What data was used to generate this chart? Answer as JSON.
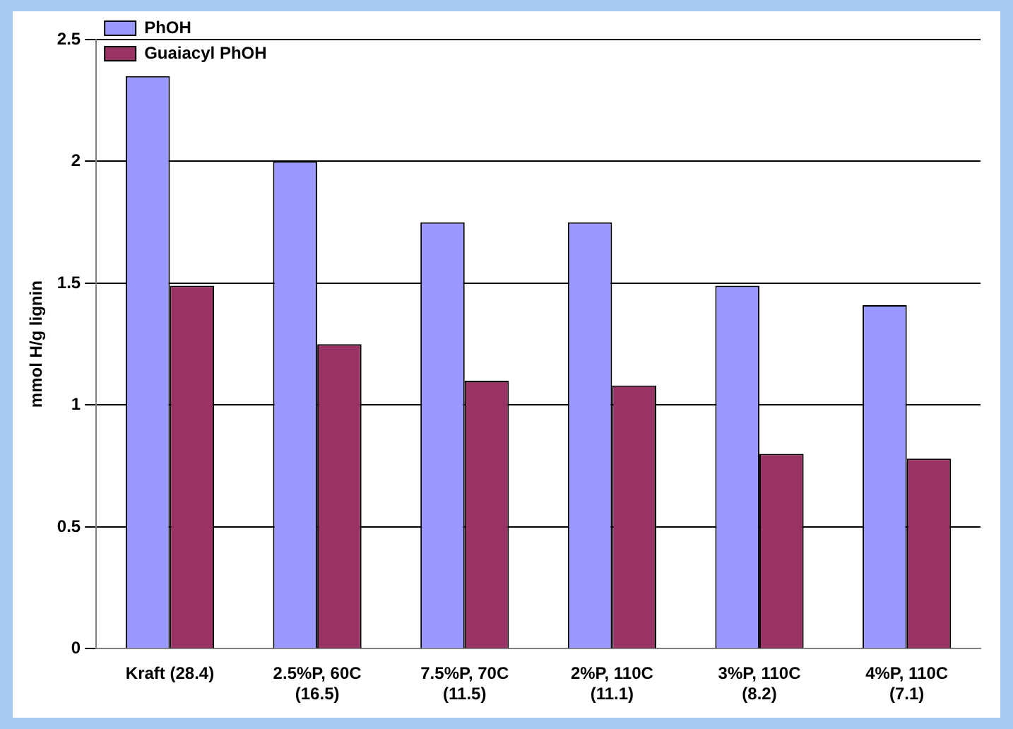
{
  "chart_data": {
    "type": "bar",
    "ylabel": "mmol H/g lignin",
    "categories": [
      "Kraft (28.4)",
      "2.5%P, 60C\n(16.5)",
      "7.5%P, 70C\n(11.5)",
      "2%P, 110C\n(11.1)",
      "3%P, 110C\n(8.2)",
      "4%P, 110C\n(7.1)"
    ],
    "series": [
      {
        "name": "PhOH",
        "color": "#9999ff",
        "values": [
          2.35,
          2.0,
          1.75,
          1.75,
          1.49,
          1.41
        ]
      },
      {
        "name": "Guaiacyl PhOH",
        "color": "#993366",
        "values": [
          1.49,
          1.25,
          1.1,
          1.08,
          0.8,
          0.78
        ]
      }
    ],
    "ylim": [
      0,
      2.5
    ],
    "yticks": [
      0,
      0.5,
      1,
      1.5,
      2,
      2.5
    ],
    "grid": "y",
    "legend": "top left"
  }
}
